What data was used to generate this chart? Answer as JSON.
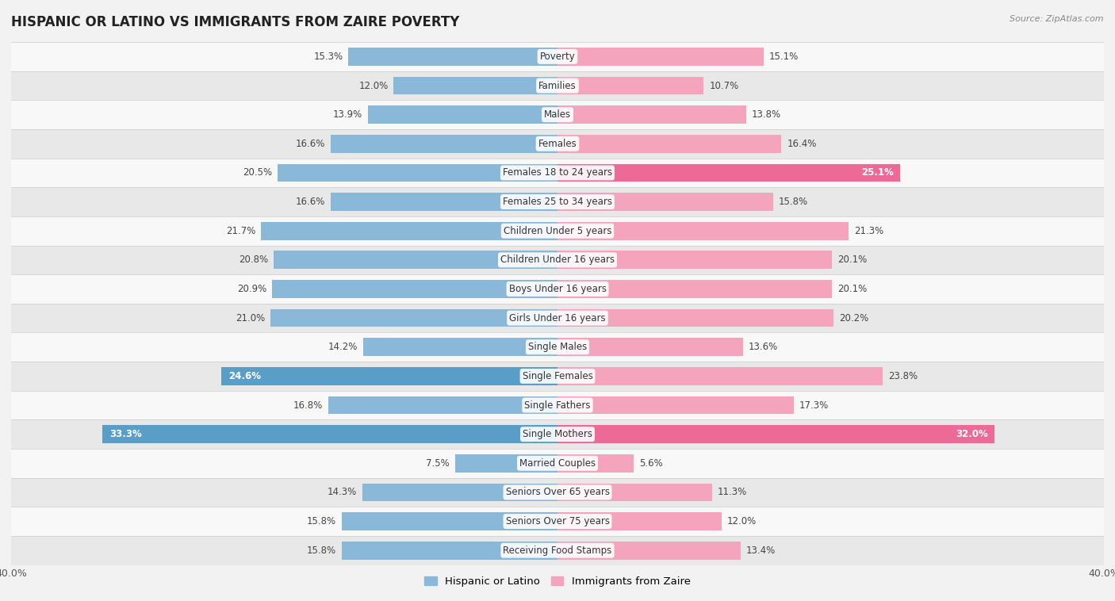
{
  "title": "HISPANIC OR LATINO VS IMMIGRANTS FROM ZAIRE POVERTY",
  "source": "Source: ZipAtlas.com",
  "categories": [
    "Poverty",
    "Families",
    "Males",
    "Females",
    "Females 18 to 24 years",
    "Females 25 to 34 years",
    "Children Under 5 years",
    "Children Under 16 years",
    "Boys Under 16 years",
    "Girls Under 16 years",
    "Single Males",
    "Single Females",
    "Single Fathers",
    "Single Mothers",
    "Married Couples",
    "Seniors Over 65 years",
    "Seniors Over 75 years",
    "Receiving Food Stamps"
  ],
  "hispanic": [
    15.3,
    12.0,
    13.9,
    16.6,
    20.5,
    16.6,
    21.7,
    20.8,
    20.9,
    21.0,
    14.2,
    24.6,
    16.8,
    33.3,
    7.5,
    14.3,
    15.8,
    15.8
  ],
  "zaire": [
    15.1,
    10.7,
    13.8,
    16.4,
    25.1,
    15.8,
    21.3,
    20.1,
    20.1,
    20.2,
    13.6,
    23.8,
    17.3,
    32.0,
    5.6,
    11.3,
    12.0,
    13.4
  ],
  "hispanic_color": "#89b8d9",
  "zaire_color": "#f4a4bc",
  "hispanic_highlight_indices": [
    11,
    13
  ],
  "zaire_highlight_indices": [
    4,
    13
  ],
  "hispanic_highlight_color": "#5a9ec8",
  "zaire_highlight_color": "#ee6a96",
  "background_color": "#f2f2f2",
  "row_color_odd": "#e8e8e8",
  "row_color_even": "#f8f8f8",
  "bar_height": 0.62,
  "xlim": 40.0,
  "label_fontsize": 8.5,
  "title_fontsize": 12,
  "legend_fontsize": 9.5,
  "value_label_fontsize": 8.5
}
